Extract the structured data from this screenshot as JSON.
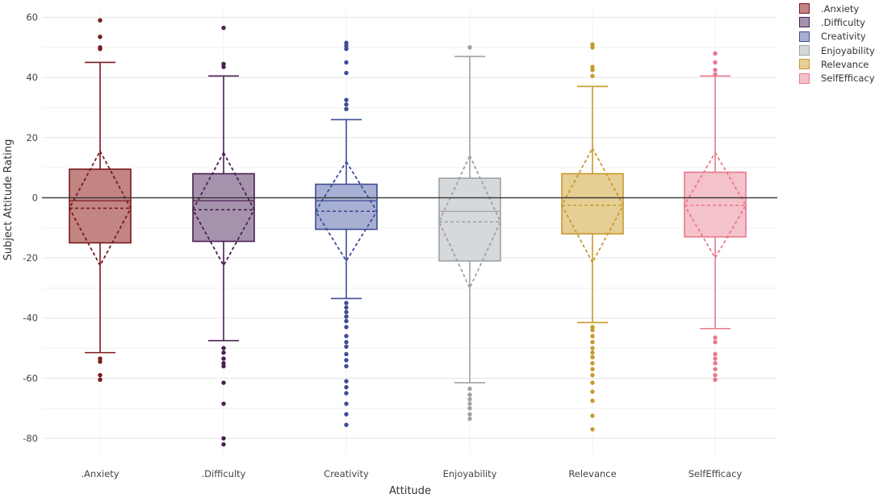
{
  "chart_data": {
    "type": "box",
    "title": "",
    "xlabel": "Attitude",
    "ylabel": "Subject Attitude Rating",
    "ylim": [
      -85,
      62
    ],
    "yticks": [
      60,
      40,
      20,
      0,
      -20,
      -40,
      -60,
      -80
    ],
    "grid": true,
    "reference_line_y": 0,
    "legend_position": "top-right",
    "categories": [
      ".Anxiety",
      ".Difficulty",
      "Creativity",
      "Enjoyability",
      "Relevance",
      "SelfEfficacy"
    ],
    "series": [
      {
        "name": ".Anxiety",
        "color": "#7a1a1f",
        "fill": "#c28583",
        "whisker_low": -51.5,
        "q1": -15,
        "median": -1,
        "q3": 9.5,
        "whisker_high": 45,
        "mean": -3.5,
        "sd_low": -22.5,
        "sd_high": 15.5,
        "outliers": [
          59,
          53.5,
          50,
          49.5,
          -53.5,
          -54.5,
          -59,
          -60.5
        ]
      },
      {
        "name": ".Difficulty",
        "color": "#4b1f52",
        "fill": "#a593ad",
        "whisker_low": -47.5,
        "q1": -14.5,
        "median": -1,
        "q3": 8,
        "whisker_high": 40.5,
        "mean": -4,
        "sd_low": -22.5,
        "sd_high": 15,
        "outliers": [
          56.5,
          44.5,
          43.5,
          -50,
          -51.5,
          -53.5,
          -55,
          -56,
          -61.5,
          -68.5,
          -80,
          -82
        ]
      },
      {
        "name": "Creativity",
        "color": "#3e4d96",
        "fill": "#a7b0d3",
        "whisker_low": -33.5,
        "q1": -10.5,
        "median": -1,
        "q3": 4.5,
        "whisker_high": 26,
        "mean": -4.5,
        "sd_low": -21,
        "sd_high": 12,
        "outliers": [
          51.5,
          50.5,
          49.5,
          45,
          41.5,
          32.5,
          31,
          29.5,
          -35,
          -36.5,
          -38,
          -39.5,
          -41,
          -43,
          -46,
          -48,
          -49.5,
          -52,
          -54,
          -56,
          -61,
          -63,
          -65,
          -68.5,
          -72,
          -75.5
        ]
      },
      {
        "name": "Enjoyability",
        "color": "#9fa2a5",
        "fill": "#d6d9dc",
        "whisker_low": -61.5,
        "q1": -21,
        "median": -4.5,
        "q3": 6.5,
        "whisker_high": 47,
        "mean": -8,
        "sd_low": -30,
        "sd_high": 14,
        "outliers": [
          50,
          -63.5,
          -65.5,
          -67,
          -68.5,
          -70,
          -72,
          -73.5
        ]
      },
      {
        "name": "Relevance",
        "color": "#c79a2e",
        "fill": "#e6cf95",
        "whisker_low": -41.5,
        "q1": -12,
        "median": 0,
        "q3": 8,
        "whisker_high": 37,
        "mean": -2.5,
        "sd_low": -21.5,
        "sd_high": 16.5,
        "outliers": [
          51,
          50,
          43.5,
          42.5,
          40.5,
          -43,
          -44,
          -46,
          -48,
          -50,
          -51.5,
          -53,
          -55,
          -57,
          -59,
          -61.5,
          -64.5,
          -67.5,
          -72.5,
          -77
        ]
      },
      {
        "name": "SelfEfficacy",
        "color": "#e8798d",
        "fill": "#f4c2cb",
        "whisker_low": -43.5,
        "q1": -13,
        "median": 0,
        "q3": 8.5,
        "whisker_high": 40.5,
        "mean": -2.5,
        "sd_low": -20,
        "sd_high": 15,
        "outliers": [
          48,
          45,
          42.5,
          41,
          -46.5,
          -48,
          -52,
          -53.5,
          -55,
          -57,
          -59,
          -60.5
        ]
      }
    ]
  }
}
